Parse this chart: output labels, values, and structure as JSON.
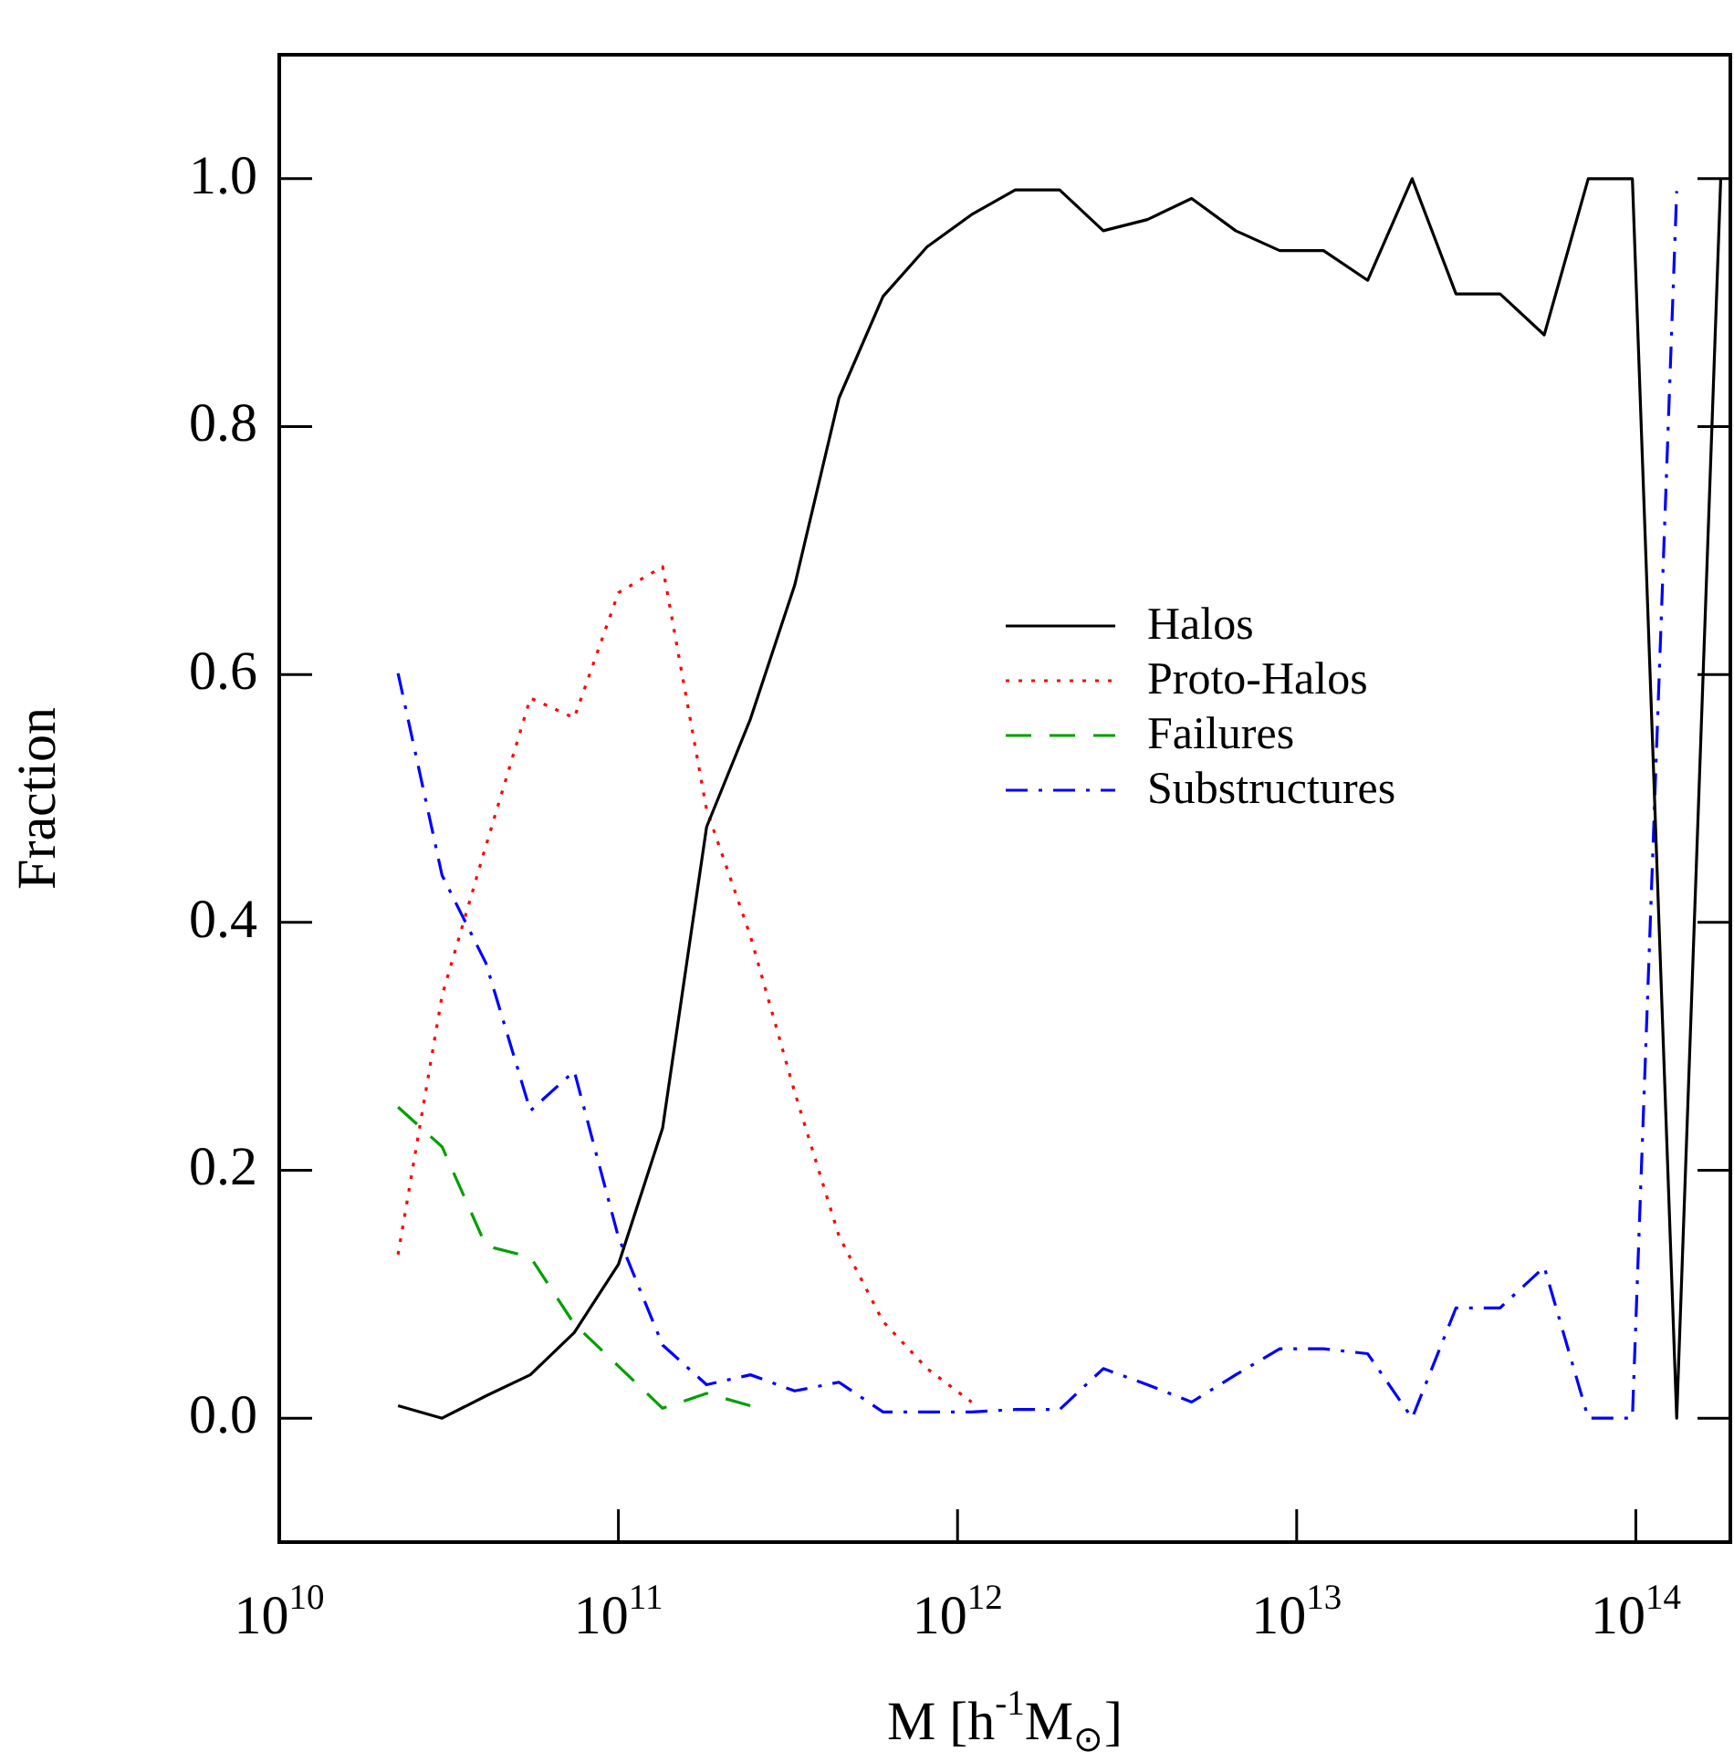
{
  "chart_data": {
    "type": "line",
    "xlabel": "M [h$^{-1}$M$_{⊙}$]",
    "ylabel": "Fraction",
    "log": "x",
    "legend": "right",
    "grid": false,
    "x": [
      22400000000.0,
      30200000000.0,
      40700000000.0,
      55000000000.0,
      74100000000.0,
      100000000000.0,
      135000000000.0,
      182000000000.0,
      245000000000.0,
      331000000000.0,
      447000000000.0,
      603000000000.0,
      813000000000.0,
      1100000000000.0,
      1480000000000.0,
      2000000000000.0,
      2690000000000.0,
      3630000000000.0,
      4900000000000.0,
      6610000000000.0,
      8910000000000.0,
      12000000000000.0,
      16200000000000.0,
      21900000000000.0,
      29500000000000.0,
      39800000000000.0,
      53700000000000.0,
      72400000000000.0,
      97700000000000.0,
      132000000000000.0,
      178000000000000.0
    ],
    "xlim": [
      10000000000.0,
      190000000000000.0
    ],
    "xticks": [
      {
        "value": 10000000000.0,
        "label": "10$^{10}$"
      },
      {
        "value": 100000000000.0,
        "label": "10$^{11}$"
      },
      {
        "value": 1000000000000.0,
        "label": "10$^{12}$"
      },
      {
        "value": 10000000000000.0,
        "label": "10$^{13}$"
      },
      {
        "value": 100000000000000.0,
        "label": "10$^{14}$"
      }
    ],
    "ylim": [
      -0.1,
      1.1
    ],
    "yticks": [
      {
        "value": 0,
        "label": "0.0"
      },
      {
        "value": 0.2,
        "label": "0.2"
      },
      {
        "value": 0.4,
        "label": "0.4"
      },
      {
        "value": 0.6,
        "label": "0.6"
      },
      {
        "value": 0.8,
        "label": "0.8"
      },
      {
        "value": 1,
        "label": "1.0"
      }
    ],
    "series": [
      {
        "name": "Halos",
        "color": "#000000",
        "line_style": "solid",
        "values": [
          0.01,
          0,
          0.018,
          0.035,
          0.069,
          0.124,
          0.234,
          0.477,
          0.564,
          0.672,
          0.823,
          0.905,
          0.945,
          0.971,
          0.991,
          0.991,
          0.958,
          0.967,
          0.984,
          0.958,
          0.942,
          0.942,
          0.918,
          1,
          0.907,
          0.907,
          0.874,
          1,
          1,
          0,
          1
        ]
      },
      {
        "name": "Proto-Halos",
        "color": "#ff0000",
        "line_style": "dotted",
        "values": [
          0.132,
          0.341,
          0.462,
          0.581,
          0.565,
          0.666,
          0.687,
          0.491,
          0.389,
          0.263,
          0.147,
          0.078,
          0.04,
          0.013,
          null,
          null,
          null,
          null,
          null,
          null,
          null,
          null,
          null,
          null,
          null,
          null,
          null,
          null,
          null,
          null,
          null
        ]
      },
      {
        "name": "Failures",
        "color": "#00a000",
        "line_style": "dashed",
        "values": [
          0.251,
          0.219,
          0.139,
          0.13,
          0.076,
          0.042,
          0.008,
          0.02,
          0.01,
          null,
          null,
          null,
          null,
          null,
          null,
          null,
          null,
          null,
          null,
          null,
          null,
          null,
          null,
          null,
          null,
          null,
          null,
          null,
          null,
          null,
          null
        ]
      },
      {
        "name": "Substructures",
        "color": "#0000ff",
        "line_style": "dashdot",
        "values": [
          0.601,
          0.438,
          0.367,
          0.248,
          0.28,
          0.146,
          0.059,
          0.027,
          0.035,
          0.022,
          0.029,
          0.005,
          0.005,
          0.005,
          0.007,
          0.007,
          0.04,
          0.027,
          0.013,
          0.035,
          0.056,
          0.056,
          0.052,
          0,
          0.089,
          0.089,
          0.122,
          0,
          0,
          0.99,
          null
        ]
      }
    ]
  }
}
